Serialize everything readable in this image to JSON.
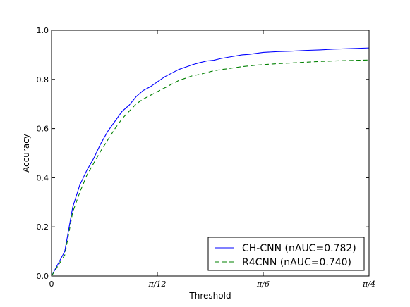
{
  "chart_data": {
    "type": "line",
    "title": "",
    "xlabel": "Threshold",
    "ylabel": "Accuracy",
    "xlim": [
      0,
      0.785398
    ],
    "ylim": [
      0,
      1.0
    ],
    "grid": false,
    "legend_position": "bottom-right",
    "x_ticks": [
      {
        "value": 0,
        "label": "0"
      },
      {
        "value": 0.261799,
        "label": "π/12"
      },
      {
        "value": 0.523599,
        "label": "π/6"
      },
      {
        "value": 0.785398,
        "label": "π/4"
      }
    ],
    "y_ticks": [
      {
        "value": 0.0,
        "label": "0.0"
      },
      {
        "value": 0.2,
        "label": "0.2"
      },
      {
        "value": 0.4,
        "label": "0.4"
      },
      {
        "value": 0.6,
        "label": "0.6"
      },
      {
        "value": 0.8,
        "label": "0.8"
      },
      {
        "value": 1.0,
        "label": "1.0"
      }
    ],
    "series": [
      {
        "name": "CH-CNN (nAUC=0.782)",
        "color": "#0000ff",
        "dash": "solid",
        "x": [
          0,
          0.0327,
          0.0524,
          0.0698,
          0.0873,
          0.1047,
          0.1222,
          0.1396,
          0.1571,
          0.1745,
          0.192,
          0.2094,
          0.2269,
          0.2443,
          0.2618,
          0.2793,
          0.2967,
          0.3142,
          0.3316,
          0.3491,
          0.3665,
          0.384,
          0.4014,
          0.4189,
          0.4363,
          0.4538,
          0.4712,
          0.4887,
          0.5061,
          0.5236,
          0.5585,
          0.5934,
          0.6283,
          0.6632,
          0.6981,
          0.733,
          0.7854
        ],
        "y": [
          0.0,
          0.1,
          0.28,
          0.37,
          0.43,
          0.48,
          0.54,
          0.59,
          0.63,
          0.67,
          0.695,
          0.73,
          0.755,
          0.77,
          0.79,
          0.81,
          0.825,
          0.84,
          0.85,
          0.86,
          0.868,
          0.875,
          0.878,
          0.885,
          0.89,
          0.895,
          0.9,
          0.902,
          0.906,
          0.91,
          0.913,
          0.915,
          0.918,
          0.92,
          0.923,
          0.925,
          0.928
        ]
      },
      {
        "name": "R4CNN (nAUC=0.740)",
        "color": "#008000",
        "dash": "dashed",
        "x": [
          0,
          0.0327,
          0.0524,
          0.0698,
          0.0873,
          0.1047,
          0.1222,
          0.1396,
          0.1571,
          0.1745,
          0.192,
          0.2094,
          0.2269,
          0.2443,
          0.2618,
          0.2793,
          0.2967,
          0.3142,
          0.3316,
          0.3491,
          0.3665,
          0.384,
          0.4014,
          0.4189,
          0.4363,
          0.4538,
          0.4712,
          0.4887,
          0.5061,
          0.5236,
          0.5585,
          0.5934,
          0.6283,
          0.6632,
          0.6981,
          0.733,
          0.7854
        ],
        "y": [
          0.0,
          0.085,
          0.26,
          0.34,
          0.41,
          0.46,
          0.51,
          0.555,
          0.6,
          0.64,
          0.67,
          0.7,
          0.72,
          0.735,
          0.75,
          0.765,
          0.78,
          0.795,
          0.805,
          0.815,
          0.82,
          0.828,
          0.835,
          0.84,
          0.843,
          0.848,
          0.852,
          0.855,
          0.858,
          0.86,
          0.864,
          0.867,
          0.87,
          0.873,
          0.875,
          0.877,
          0.879
        ]
      }
    ]
  }
}
